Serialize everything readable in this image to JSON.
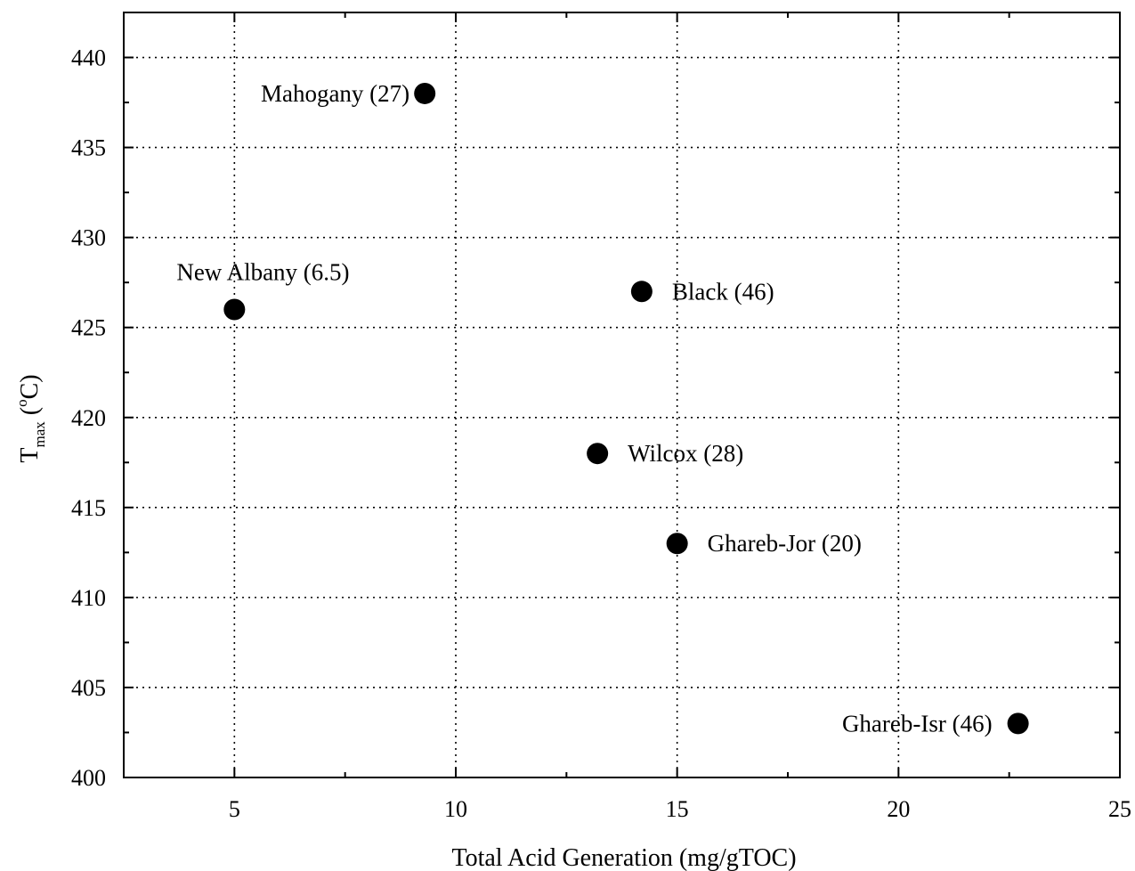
{
  "chart_data": {
    "type": "scatter",
    "title": "",
    "xlabel": "Total Acid Generation (mg/gTOC)",
    "ylabel": {
      "base": "T",
      "subscript": "max",
      "unit_open": " (",
      "unit_sup": "o",
      "unit_close": "C)"
    },
    "xlim": [
      2.5,
      25
    ],
    "ylim": [
      400,
      442.5
    ],
    "x_ticks": [
      5,
      10,
      15,
      20,
      25
    ],
    "x_tick_labels": [
      "5",
      "10",
      "15",
      "20",
      "25"
    ],
    "y_ticks": [
      400,
      405,
      410,
      415,
      420,
      425,
      430,
      435,
      440
    ],
    "y_tick_labels": [
      "400",
      "405",
      "410",
      "415",
      "420",
      "425",
      "430",
      "435",
      "440"
    ],
    "grid": true,
    "marker_color": "#000000",
    "points": [
      {
        "x": 9.3,
        "y": 438,
        "label": "Mahogany (27)",
        "label_side": "left-above"
      },
      {
        "x": 5.0,
        "y": 426,
        "label": "New Albany (6.5)",
        "label_side": "above"
      },
      {
        "x": 14.2,
        "y": 427,
        "label": "Black (46)",
        "label_side": "right"
      },
      {
        "x": 13.2,
        "y": 418,
        "label": "Wilcox (28)",
        "label_side": "right"
      },
      {
        "x": 15.0,
        "y": 413,
        "label": "Ghareb-Jor (20)",
        "label_side": "right"
      },
      {
        "x": 22.7,
        "y": 403,
        "label": "Ghareb-Isr (46)",
        "label_side": "left"
      }
    ]
  }
}
